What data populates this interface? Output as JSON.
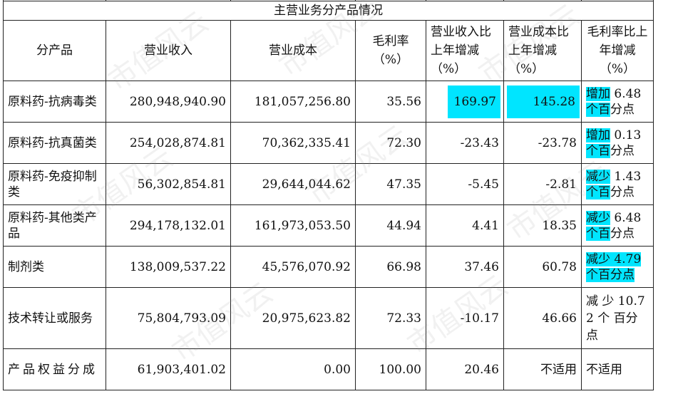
{
  "table": {
    "section_title": "主营业务分产品情况",
    "headers": [
      "分产品",
      "营业收入",
      "营业成本",
      "毛利率（%）",
      "营业收入比上年增减（%）",
      "营业成本比上年增减（%）",
      "毛利率比上年增减（%）"
    ],
    "rows": [
      {
        "product": "原料药-抗病毒类",
        "revenue": "280,948,940.90",
        "cost": "181,057,256.80",
        "margin": "35.56",
        "rev_change": "169.97",
        "cost_change": "145.28",
        "margin_change_hl": "增加",
        "margin_change_rest": " 6.48",
        "margin_change_hl2": "个百",
        "margin_change_rest2": "分点"
      },
      {
        "product": "原料药-抗真菌类",
        "revenue": "254,028,874.81",
        "cost": "70,362,335.41",
        "margin": "72.30",
        "rev_change": "-23.43",
        "cost_change": "-23.78",
        "margin_change_hl": "增加",
        "margin_change_rest": " 0.13",
        "margin_change_hl2": "个百",
        "margin_change_rest2": "分点"
      },
      {
        "product": "原料药-免疫抑制类",
        "revenue": "56,302,854.81",
        "cost": "29,644,044.62",
        "margin": "47.35",
        "rev_change": "-5.45",
        "cost_change": "-2.81",
        "margin_change_hl": "减少",
        "margin_change_rest": " 1.43",
        "margin_change_hl2": "个百",
        "margin_change_rest2": "分点"
      },
      {
        "product": "原料药-其他类产品",
        "revenue": "294,178,132.01",
        "cost": "161,973,053.50",
        "margin": "44.94",
        "rev_change": "4.41",
        "cost_change": "18.35",
        "margin_change_hl": "减少",
        "margin_change_rest": " 6.48",
        "margin_change_hl2": "个百",
        "margin_change_rest2": "分点"
      },
      {
        "product": "制剂类",
        "revenue": "138,009,537.22",
        "cost": "45,576,070.92",
        "margin": "66.98",
        "rev_change": "37.46",
        "cost_change": "60.78",
        "margin_change_hl": "减少 4.79",
        "margin_change_rest": "",
        "margin_change_hl2": "个百分点",
        "margin_change_rest2": ""
      },
      {
        "product": "技术转让或服务",
        "revenue": "75,804,793.09",
        "cost": "20,975,623.82",
        "margin": "72.33",
        "rev_change": "-10.17",
        "cost_change": "46.66",
        "margin_change_text": "减 少 10.72 个 百分点"
      },
      {
        "product": "产品权益分成",
        "revenue": "61,903,401.02",
        "cost": "0.00",
        "margin": "100.00",
        "rev_change": "20.46",
        "cost_change": "不适用",
        "margin_change_text": "不适用"
      }
    ]
  },
  "watermark": "市值风云"
}
